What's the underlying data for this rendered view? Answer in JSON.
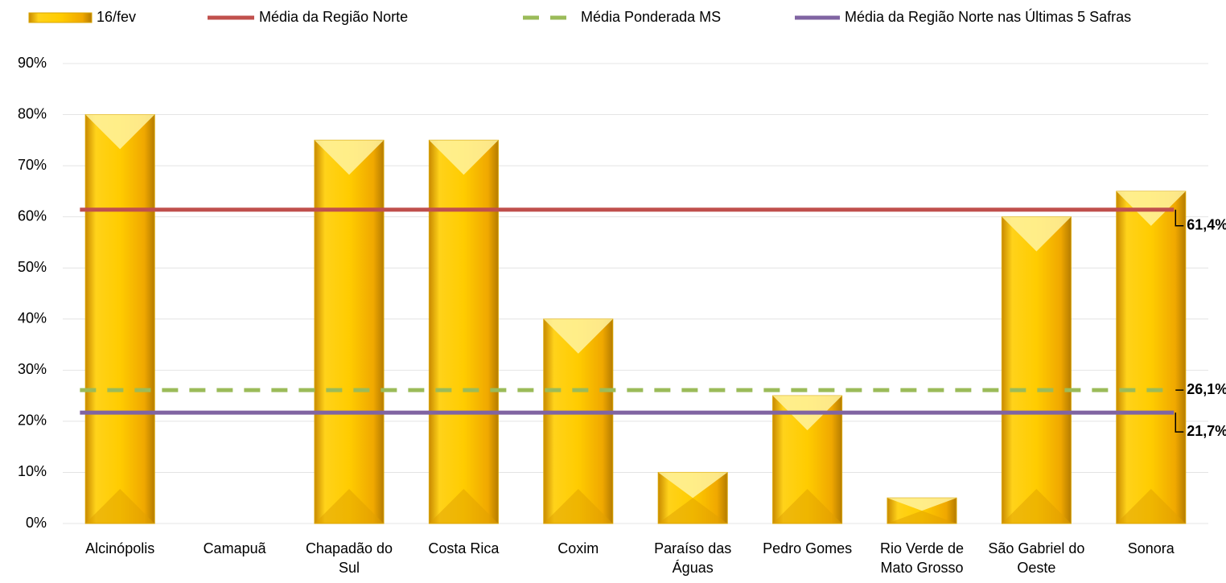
{
  "chart_data": {
    "type": "bar",
    "categories": [
      "Alcinópolis",
      "Camapuã",
      "Chapadão do Sul",
      "Costa Rica",
      "Coxim",
      "Paraíso das Águas",
      "Pedro Gomes",
      "Rio Verde de Mato Grosso",
      "São Gabriel do Oeste",
      "Sonora"
    ],
    "series": [
      {
        "name": "16/fev",
        "color": "#f5c000",
        "values": [
          80,
          0,
          75,
          75,
          40,
          10,
          25,
          5,
          60,
          65
        ]
      }
    ],
    "lines": [
      {
        "name": "Média da Região Norte",
        "color": "#c0504d",
        "value": 61.4,
        "value_label": "61,4%",
        "dashed": false
      },
      {
        "name": "Média Ponderada MS",
        "color": "#9bbb59",
        "value": 26.1,
        "value_label": "26,1%",
        "dashed": true
      },
      {
        "name": "Média da Região Norte nas Últimas 5 Safras",
        "color": "#8064a2",
        "value": 21.7,
        "value_label": "21,7%",
        "dashed": false
      }
    ],
    "ylim": [
      0,
      90
    ],
    "yticks": [
      {
        "value": 0,
        "label": "0%"
      },
      {
        "value": 10,
        "label": "10%"
      },
      {
        "value": 20,
        "label": "20%"
      },
      {
        "value": 30,
        "label": "30%"
      },
      {
        "value": 40,
        "label": "40%"
      },
      {
        "value": 50,
        "label": "50%"
      },
      {
        "value": 60,
        "label": "60%"
      },
      {
        "value": 70,
        "label": "70%"
      },
      {
        "value": 80,
        "label": "80%"
      },
      {
        "value": 90,
        "label": "90%"
      }
    ],
    "grid": true,
    "legend": "top"
  }
}
